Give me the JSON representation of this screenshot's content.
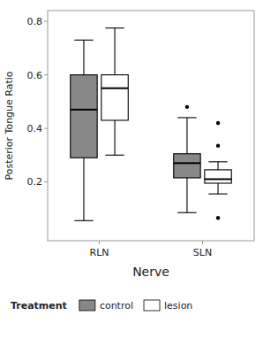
{
  "chart_data": {
    "type": "box",
    "xlabel": "Nerve",
    "ylabel": "Posterior Tongue Ratio",
    "categories": [
      "RLN",
      "SLN"
    ],
    "ylim": [
      -0.02,
      0.84
    ],
    "yticks": [
      0.2,
      0.4,
      0.6,
      0.8
    ],
    "grid": false,
    "legend": "bottom",
    "legend_title": "Treatment",
    "series": [
      {
        "name": "control",
        "color": "#888888",
        "q1": [
          0.29,
          0.215
        ],
        "median": [
          0.47,
          0.27
        ],
        "q3": [
          0.6,
          0.305
        ],
        "whisker_low": [
          0.055,
          0.085
        ],
        "whisker_high": [
          0.73,
          0.44
        ],
        "fliers": [
          [],
          [
            0.48
          ]
        ]
      },
      {
        "name": "lesion",
        "color": "#ffffff",
        "q1": [
          0.43,
          0.195
        ],
        "median": [
          0.55,
          0.21
        ],
        "q3": [
          0.6,
          0.245
        ],
        "whisker_low": [
          0.3,
          0.155
        ],
        "whisker_high": [
          0.775,
          0.275
        ],
        "fliers": [
          [],
          [
            0.335,
            0.42,
            0.065
          ]
        ]
      }
    ]
  }
}
